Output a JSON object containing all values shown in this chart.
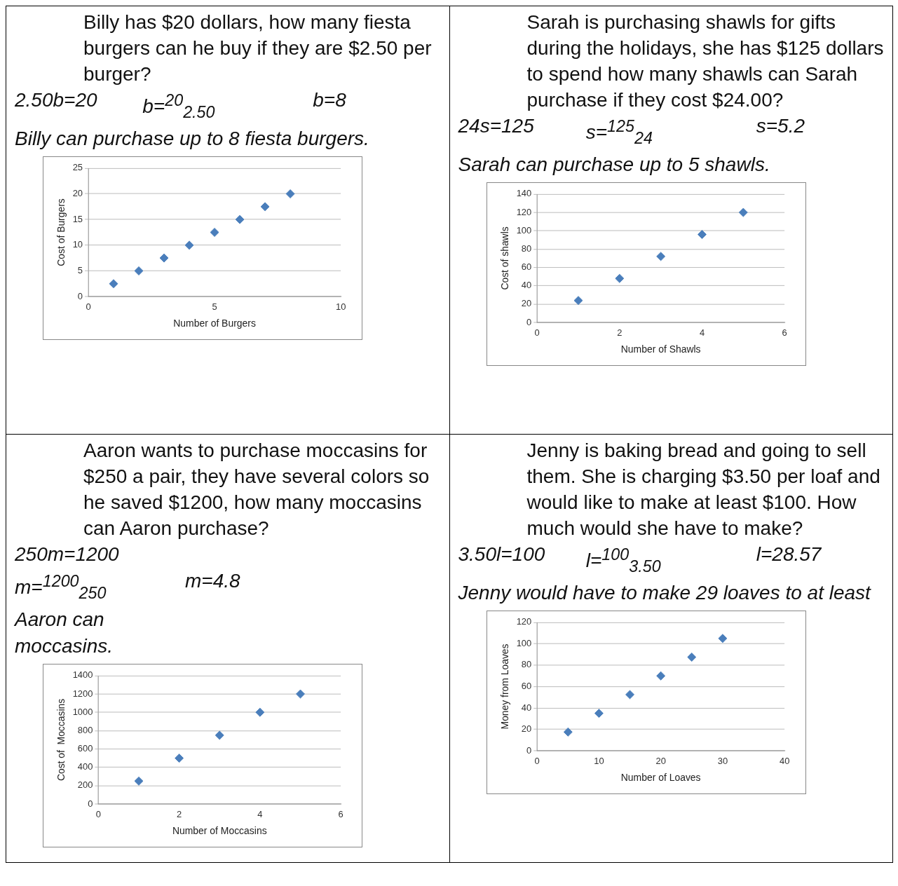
{
  "chart_data": [
    {
      "type": "scatter",
      "title": "Billy has $20 dollars, how many fiesta burgers can he buy if they are $2.50 per burger?",
      "annotations": [
        "2.50b=20",
        "b=$^{20}$$_{2.50}$",
        "b=8",
        "Billy can purchase up to 8 fiesta burgers."
      ],
      "xlabel": "Number of Burgers",
      "ylabel": "Cost of Burgers",
      "x": [
        1,
        2,
        3,
        4,
        5,
        6,
        7,
        8
      ],
      "series": [
        {
          "color": "#4a7ebb",
          "values": [
            2.5,
            5,
            7.5,
            10,
            12.5,
            15,
            17.5,
            20
          ]
        }
      ],
      "xlim": [
        0,
        10
      ],
      "xticks": [
        0,
        5,
        10
      ],
      "ylim": [
        0,
        25
      ],
      "yticks": [
        0,
        5,
        10,
        15,
        20,
        25
      ],
      "grid": "y",
      "marker": "diamond"
    },
    {
      "type": "scatter",
      "title": "Sarah is purchasing shawls for gifts during the holidays, she has $125 dollars to spend how many shawls can Sarah purchase if they cost $24.00?",
      "annotations": [
        "24s=125",
        "s=$^{125}$$_{24}$",
        "s=5.2",
        "Sarah can purchase up to 5 shawls."
      ],
      "xlabel": "Number of Shawls",
      "ylabel": "Cost of shawls",
      "x": [
        1,
        2,
        3,
        4,
        5
      ],
      "series": [
        {
          "color": "#4a7ebb",
          "values": [
            24,
            48,
            72,
            96,
            120
          ]
        }
      ],
      "xlim": [
        0,
        6
      ],
      "xticks": [
        0,
        2,
        4,
        6
      ],
      "ylim": [
        0,
        140
      ],
      "yticks": [
        0,
        20,
        40,
        60,
        80,
        100,
        120,
        140
      ],
      "grid": "y",
      "marker": "diamond"
    },
    {
      "type": "scatter",
      "title": "Aaron wants to purchase moccasins for $250 a pair, they have several colors so he saved $1200, how many moccasins can Aaron purchase?",
      "annotations": [
        "250m=1200",
        "m=$^{1200}$$_{250}$",
        "m=4.8",
        "Aaron can",
        "moccasins."
      ],
      "xlabel": "Number of Moccasins",
      "ylabel": "Cost of  Moccasins",
      "x": [
        1,
        2,
        3,
        4,
        5
      ],
      "series": [
        {
          "color": "#4a7ebb",
          "values": [
            250,
            500,
            750,
            1000,
            1200
          ]
        }
      ],
      "xlim": [
        0,
        6
      ],
      "xticks": [
        0,
        2,
        4,
        6
      ],
      "ylim": [
        0,
        1400
      ],
      "yticks": [
        0,
        200,
        400,
        600,
        800,
        1000,
        1200,
        1400
      ],
      "grid": "y",
      "marker": "diamond"
    },
    {
      "type": "scatter",
      "title": "Jenny is baking bread and going to sell them. She is charging $3.50 per loaf and would like to make at least $100. How much would she have to make?",
      "annotations": [
        "3.50l=100",
        "l=$^{100}$$_{3.50}$",
        "l=28.57",
        "Jenny would have to make 29 loaves to at least"
      ],
      "xlabel": "Number of Loaves",
      "ylabel": "Money from Loaves",
      "x": [
        5,
        10,
        15,
        20,
        25,
        30
      ],
      "series": [
        {
          "color": "#4a7ebb",
          "values": [
            17.5,
            35,
            52.5,
            70,
            87.5,
            105
          ]
        }
      ],
      "xlim": [
        0,
        40
      ],
      "xticks": [
        0,
        10,
        20,
        30,
        40
      ],
      "ylim": [
        0,
        120
      ],
      "yticks": [
        0,
        20,
        40,
        60,
        80,
        100,
        120
      ],
      "grid": "y",
      "marker": "diamond"
    }
  ]
}
